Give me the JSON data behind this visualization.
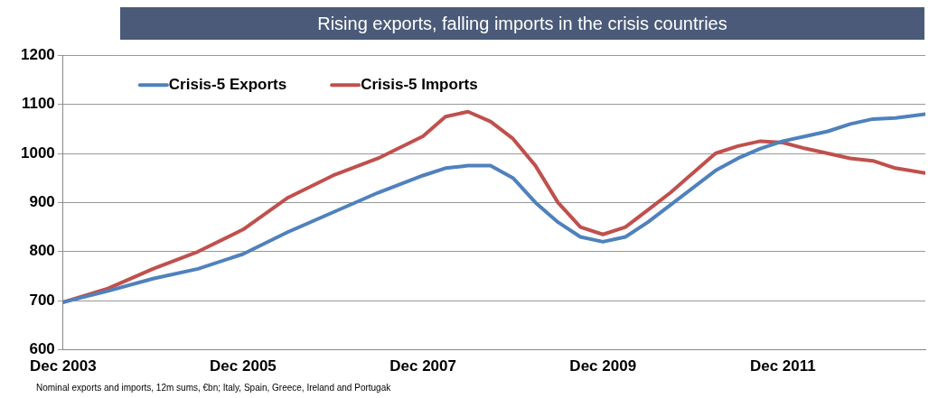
{
  "chart_data": {
    "type": "line",
    "title": "Rising exports, falling imports in the crisis countries",
    "annotations": [
      "Nominal exports and imports, 12m sums, €bn; Italy, Spain, Greece, Ireland and Portugak"
    ],
    "xlim": [
      "2003-12",
      "2013-07"
    ],
    "xticks": [
      {
        "value": "2003-12",
        "label": "Dec 2003"
      },
      {
        "value": "2005-12",
        "label": "Dec 2005"
      },
      {
        "value": "2007-12",
        "label": "Dec 2007"
      },
      {
        "value": "2009-12",
        "label": "Dec 2009"
      },
      {
        "value": "2011-12",
        "label": "Dec 2011"
      }
    ],
    "ylim": [
      600,
      1200
    ],
    "yticks": [
      600,
      700,
      800,
      900,
      1000,
      1100,
      1200
    ],
    "grid": "y",
    "legend": "top left",
    "marker": "none",
    "line_style": "solid",
    "series": [
      {
        "name": "Crisis-5 Exports",
        "color": "#4f81bd",
        "x": [
          "2003-12",
          "2004-06",
          "2004-12",
          "2005-06",
          "2005-12",
          "2006-06",
          "2006-12",
          "2007-06",
          "2007-12",
          "2008-03",
          "2008-06",
          "2008-09",
          "2008-12",
          "2009-03",
          "2009-06",
          "2009-09",
          "2009-12",
          "2010-03",
          "2010-06",
          "2010-09",
          "2010-12",
          "2011-03",
          "2011-06",
          "2011-09",
          "2011-12",
          "2012-03",
          "2012-06",
          "2012-09",
          "2012-12",
          "2013-03",
          "2013-07"
        ],
        "values": [
          697,
          720,
          745,
          765,
          795,
          840,
          880,
          920,
          955,
          970,
          975,
          975,
          950,
          900,
          860,
          830,
          820,
          830,
          860,
          895,
          930,
          965,
          990,
          1010,
          1025,
          1035,
          1045,
          1060,
          1070,
          1072,
          1080
        ]
      },
      {
        "name": "Crisis-5 Imports",
        "color": "#c0504d",
        "x": [
          "2003-12",
          "2004-06",
          "2004-12",
          "2005-06",
          "2005-12",
          "2006-06",
          "2006-12",
          "2007-06",
          "2007-12",
          "2008-03",
          "2008-06",
          "2008-09",
          "2008-12",
          "2009-03",
          "2009-06",
          "2009-09",
          "2009-12",
          "2010-03",
          "2010-06",
          "2010-09",
          "2010-12",
          "2011-03",
          "2011-06",
          "2011-09",
          "2011-12",
          "2012-03",
          "2012-06",
          "2012-09",
          "2012-12",
          "2013-03",
          "2013-07"
        ],
        "values": [
          697,
          725,
          765,
          800,
          845,
          910,
          955,
          990,
          1035,
          1075,
          1085,
          1065,
          1030,
          975,
          900,
          850,
          835,
          850,
          885,
          920,
          960,
          1000,
          1015,
          1025,
          1022,
          1010,
          1000,
          990,
          985,
          970,
          960
        ]
      }
    ]
  }
}
